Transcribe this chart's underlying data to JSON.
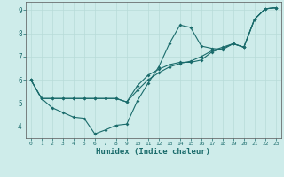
{
  "xlabel": "Humidex (Indice chaleur)",
  "background_color": "#ceecea",
  "grid_color": "#b8dbd8",
  "line_color": "#1a6b6b",
  "xlim": [
    -0.5,
    23.5
  ],
  "ylim": [
    3.5,
    9.35
  ],
  "xticks": [
    0,
    1,
    2,
    3,
    4,
    5,
    6,
    7,
    8,
    9,
    10,
    11,
    12,
    13,
    14,
    15,
    16,
    17,
    18,
    19,
    20,
    21,
    22,
    23
  ],
  "yticks": [
    4,
    5,
    6,
    7,
    8,
    9
  ],
  "line1_x": [
    0,
    1,
    2,
    3,
    4,
    5,
    6,
    7,
    8,
    9,
    10,
    11,
    12,
    13,
    14,
    15,
    16,
    17,
    18,
    19,
    20,
    21,
    22,
    23
  ],
  "line1_y": [
    6.0,
    5.2,
    4.8,
    4.6,
    4.4,
    4.35,
    3.68,
    3.85,
    4.05,
    4.1,
    5.1,
    5.85,
    6.55,
    7.55,
    8.35,
    8.25,
    7.45,
    7.35,
    7.3,
    7.55,
    7.4,
    8.6,
    9.05,
    9.1
  ],
  "line2_x": [
    0,
    1,
    2,
    3,
    4,
    5,
    6,
    7,
    8,
    9,
    10,
    11,
    12,
    13,
    14,
    15,
    16,
    17,
    18,
    19,
    20,
    21,
    22,
    23
  ],
  "line2_y": [
    6.0,
    5.2,
    5.2,
    5.2,
    5.2,
    5.2,
    5.2,
    5.2,
    5.2,
    5.05,
    5.75,
    6.2,
    6.45,
    6.65,
    6.75,
    6.75,
    6.85,
    7.2,
    7.35,
    7.55,
    7.4,
    8.6,
    9.05,
    9.1
  ],
  "line3_x": [
    0,
    1,
    2,
    3,
    4,
    5,
    6,
    7,
    8,
    9,
    10,
    11,
    12,
    13,
    14,
    15,
    16,
    17,
    18,
    19,
    20,
    21,
    22,
    23
  ],
  "line3_y": [
    6.0,
    5.2,
    5.2,
    5.2,
    5.2,
    5.2,
    5.2,
    5.2,
    5.2,
    5.05,
    5.55,
    6.0,
    6.3,
    6.55,
    6.7,
    6.8,
    7.0,
    7.25,
    7.4,
    7.55,
    7.4,
    8.6,
    9.05,
    9.1
  ],
  "linewidth": 0.8,
  "marker_size": 2.0
}
